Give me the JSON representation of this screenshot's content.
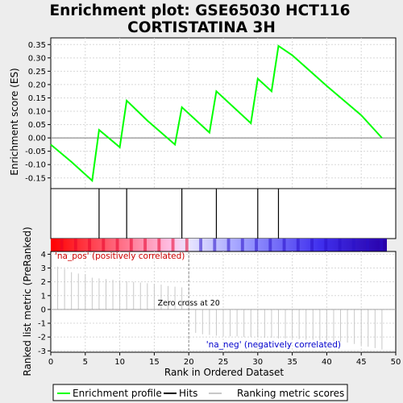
{
  "title_line1": "Enrichment plot: GSE65030 HCT116",
  "title_line2": "CORTISTATINA 3H",
  "es_ylabel": "Enrichment score (ES)",
  "rank_ylabel": "Ranked list metric (PreRanked)",
  "xlabel": "Rank in Ordered Dataset",
  "pos_label": "'na_pos' (positively correlated)",
  "neg_label": "'na_neg' (negatively correlated)",
  "zero_cross_label": "Zero cross at 20",
  "legend": {
    "es": "Enrichment profile",
    "hits": "Hits",
    "metric": "Ranking metric scores"
  },
  "colors": {
    "es_line": "#00ff00",
    "pos_text": "#cc0000",
    "neg_text": "#0000cc",
    "metric_line": "#c8c8c8"
  },
  "chart_data": {
    "type": "line",
    "xlim": [
      0,
      50
    ],
    "x_ticks": [
      0,
      5,
      10,
      15,
      20,
      25,
      30,
      35,
      40,
      45,
      50
    ],
    "es_ylim": [
      -0.19,
      0.375
    ],
    "es_ticks": [
      -0.15,
      -0.1,
      -0.05,
      0.0,
      0.05,
      0.1,
      0.15,
      0.2,
      0.25,
      0.3,
      0.35
    ],
    "rank_ylim": [
      -3.1,
      4.2
    ],
    "rank_ticks": [
      -3,
      -2,
      -1,
      0,
      1,
      2,
      3,
      4
    ],
    "es_curve": {
      "x": [
        0,
        3,
        6,
        7,
        10,
        11,
        14,
        18,
        19,
        23,
        24,
        29,
        30,
        32,
        33,
        35,
        40,
        45,
        48
      ],
      "y": [
        -0.025,
        -0.09,
        -0.16,
        0.03,
        -0.035,
        0.14,
        0.065,
        -0.025,
        0.115,
        0.02,
        0.175,
        0.055,
        0.222,
        0.175,
        0.345,
        0.31,
        0.195,
        0.085,
        0.0
      ]
    },
    "hits": [
      7,
      11,
      19,
      24,
      30,
      33
    ],
    "zero_cross": 20,
    "metric": {
      "x": [
        1,
        2,
        3,
        4,
        5,
        6,
        7,
        8,
        9,
        10,
        11,
        12,
        13,
        14,
        15,
        16,
        17,
        18,
        19,
        20,
        21,
        22,
        23,
        24,
        25,
        26,
        27,
        28,
        29,
        30,
        31,
        32,
        33,
        34,
        35,
        36,
        37,
        38,
        39,
        40,
        41,
        42,
        43,
        44,
        45,
        46,
        47,
        48
      ],
      "y": [
        3.1,
        2.95,
        2.7,
        2.6,
        2.55,
        2.3,
        2.25,
        2.2,
        2.15,
        2.1,
        2.05,
        2.0,
        1.95,
        1.9,
        1.85,
        1.8,
        1.7,
        1.65,
        1.6,
        0.0,
        -1.7,
        -1.8,
        -1.85,
        -1.9,
        -1.95,
        -1.95,
        -1.95,
        -2.0,
        -2.0,
        -2.0,
        -2.05,
        -2.05,
        -2.1,
        -2.1,
        -2.1,
        -2.15,
        -2.2,
        -2.2,
        -2.25,
        -2.25,
        -2.3,
        -2.35,
        -2.4,
        -2.5,
        -2.6,
        -2.7,
        -2.8,
        -2.9
      ]
    }
  }
}
